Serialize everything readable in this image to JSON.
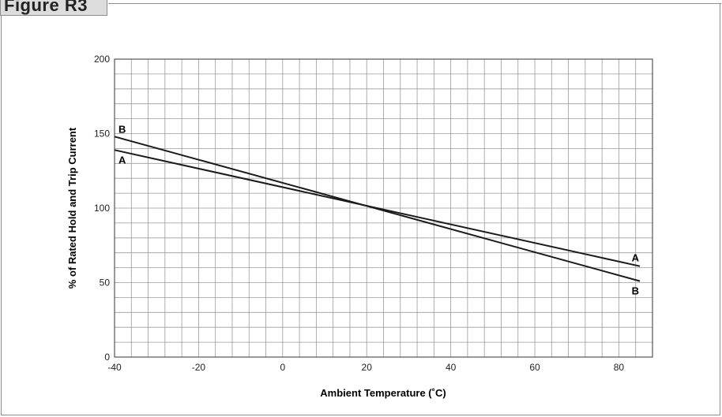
{
  "figure_label": "Figure R3",
  "chart_data": {
    "type": "line",
    "title": "",
    "xlabel": "Ambient Temperature (˚C)",
    "ylabel": "% of Rated Hold and Trip Current",
    "xlim": [
      -40,
      88
    ],
    "ylim": [
      0,
      200
    ],
    "x_ticks": [
      -40,
      -20,
      0,
      20,
      40,
      60,
      80
    ],
    "y_ticks": [
      0,
      50,
      100,
      150,
      200
    ],
    "grid": true,
    "series": [
      {
        "name": "A",
        "x": [
          -40,
          85
        ],
        "y": [
          139,
          61
        ]
      },
      {
        "name": "B",
        "x": [
          -40,
          85
        ],
        "y": [
          148,
          51
        ]
      }
    ],
    "line_color": "#1a1a1a",
    "grid_color": "#9a9a9a"
  }
}
